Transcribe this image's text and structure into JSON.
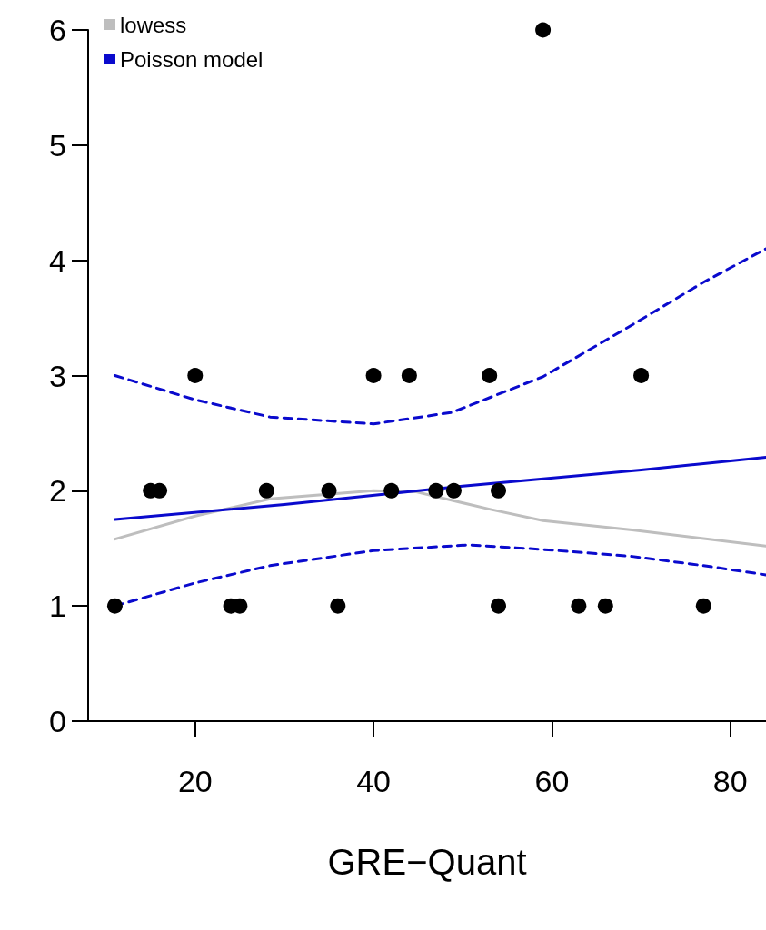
{
  "chart_data": {
    "type": "scatter",
    "xlabel": "GRE−Quant",
    "xlim": [
      8,
      84
    ],
    "xticks": [
      20,
      40,
      60,
      80
    ],
    "ylim": [
      0,
      6
    ],
    "yticks": [
      0,
      1,
      2,
      3,
      4,
      5,
      6
    ],
    "grid": false,
    "legend": "top left",
    "marker": "circle",
    "series": [
      {
        "type": "scatter",
        "color": "#000000",
        "x": [
          11,
          15,
          16,
          20,
          24,
          25,
          28,
          35,
          36,
          40,
          42,
          44,
          47,
          49,
          53,
          54,
          54,
          59,
          63,
          66,
          70,
          77
        ],
        "values": [
          1,
          2,
          2,
          3,
          1,
          1,
          2,
          2,
          1,
          3,
          2,
          3,
          2,
          2,
          3,
          2,
          1,
          6,
          1,
          1,
          3,
          1
        ]
      },
      {
        "type": "line",
        "name": "lowess",
        "color": "#bebebe",
        "marker": "none",
        "line_style": "solid",
        "x": [
          11,
          20,
          28.4,
          40,
          44.8,
          53,
          59,
          69,
          84
        ],
        "values": [
          1.58,
          1.78,
          1.93,
          2.0,
          1.99,
          1.84,
          1.74,
          1.66,
          1.52
        ]
      },
      {
        "type": "line",
        "name": "Poisson model",
        "color": "#0a0acd",
        "marker": "none",
        "line_style": "solid",
        "x": [
          11,
          30,
          50,
          70,
          84
        ],
        "values": [
          1.75,
          1.88,
          2.04,
          2.18,
          2.29
        ]
      },
      {
        "type": "line",
        "color": "#0a0acd",
        "marker": "none",
        "line_style": "dashed",
        "x": [
          11,
          20,
          28.4,
          40,
          48.8,
          59,
          69,
          77,
          84
        ],
        "values": [
          3.0,
          2.79,
          2.64,
          2.58,
          2.68,
          2.99,
          3.44,
          3.81,
          4.1
        ]
      },
      {
        "type": "line",
        "color": "#0a0acd",
        "marker": "none",
        "line_style": "dashed",
        "x": [
          11,
          20,
          28.4,
          40,
          50.7,
          59,
          69,
          77,
          84
        ],
        "values": [
          1.0,
          1.2,
          1.35,
          1.48,
          1.53,
          1.49,
          1.43,
          1.35,
          1.27
        ]
      }
    ]
  }
}
